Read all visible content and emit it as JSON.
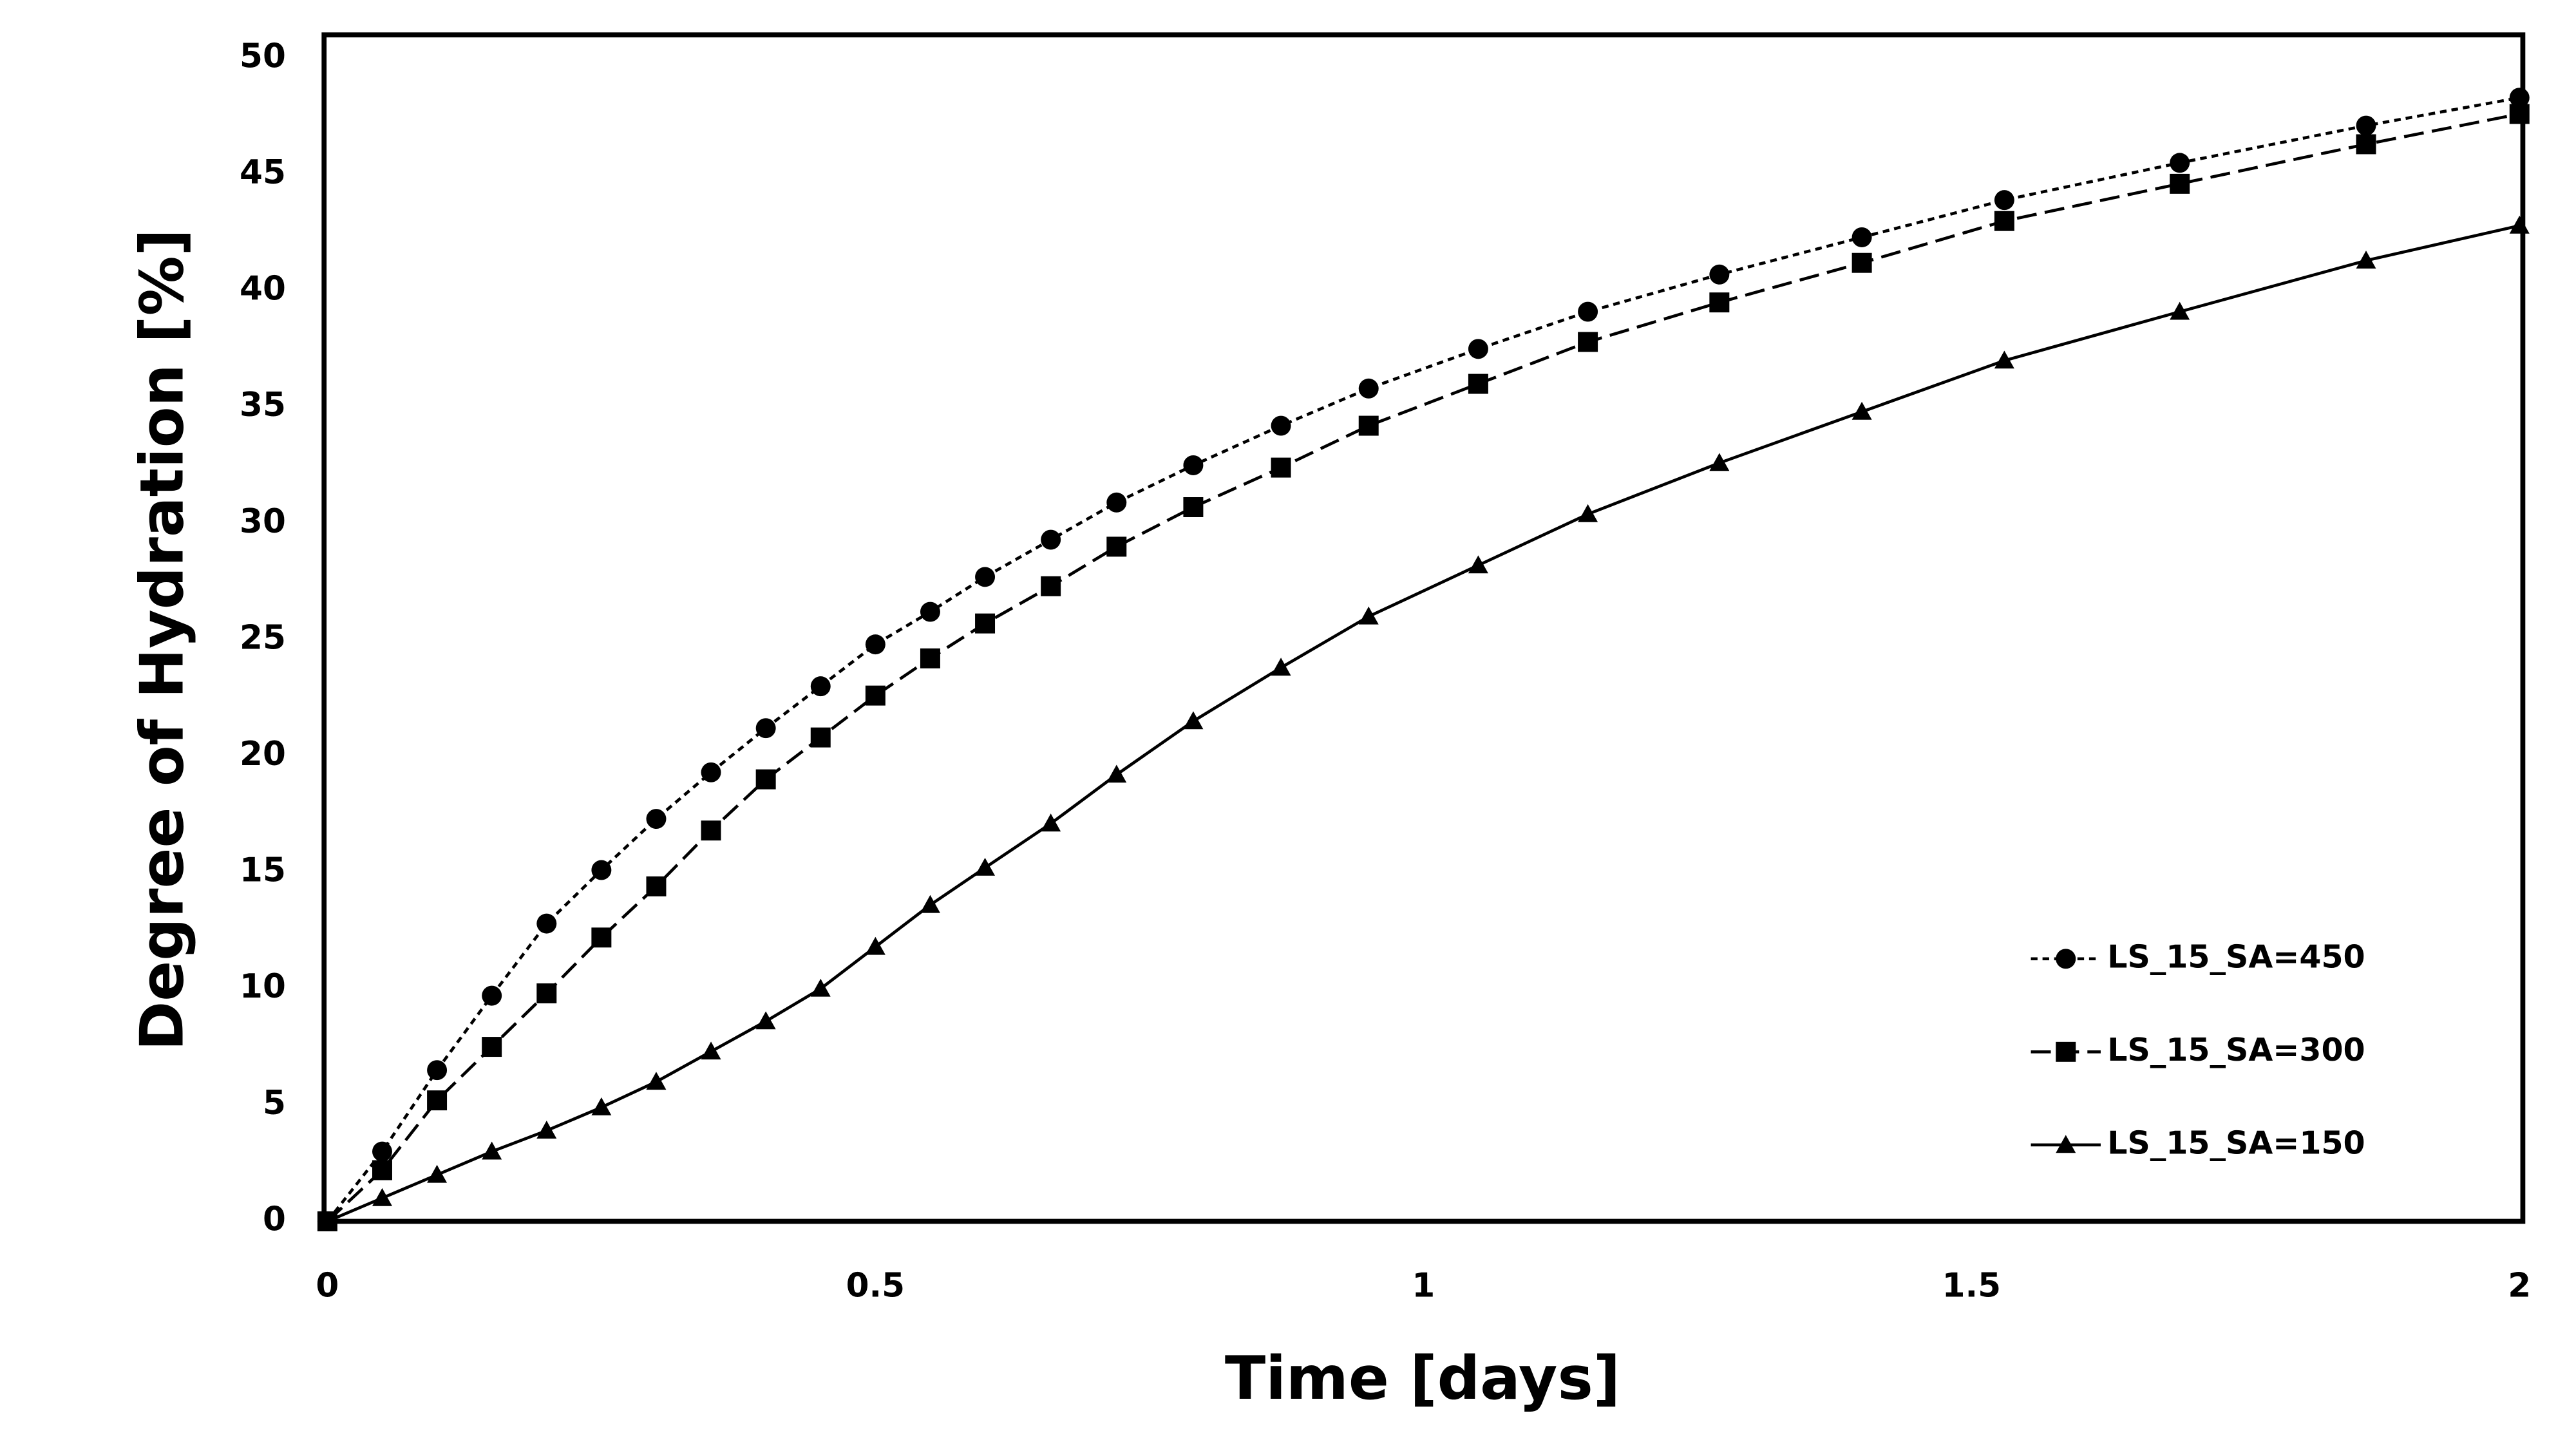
{
  "chart_data": {
    "type": "line",
    "x_label": "Time [days]",
    "y_label": "Degree of Hydration [%]",
    "xlim": [
      0,
      2
    ],
    "xticks": [
      0,
      0.5,
      1,
      1.5,
      2
    ],
    "ylim": [
      0,
      50
    ],
    "yticks": [
      0,
      5,
      10,
      15,
      20,
      25,
      30,
      35,
      40,
      45,
      50
    ],
    "grid": false,
    "legend": "lower right",
    "x": [
      0,
      0.05,
      0.1,
      0.15,
      0.2,
      0.25,
      0.3,
      0.35,
      0.4,
      0.45,
      0.5,
      0.55,
      0.6,
      0.66,
      0.72,
      0.79,
      0.87,
      0.95,
      1.05,
      1.15,
      1.27,
      1.4,
      1.53,
      1.69,
      1.86,
      2.0
    ],
    "series": [
      {
        "name": "LS_15_SA=450",
        "color": "#000000",
        "marker": "circle",
        "dash": "short",
        "values": [
          0,
          3.0,
          6.5,
          9.7,
          12.8,
          15.1,
          17.3,
          19.3,
          21.2,
          23.0,
          24.8,
          26.2,
          27.7,
          29.3,
          30.9,
          32.5,
          34.2,
          35.8,
          37.5,
          39.1,
          40.7,
          42.3,
          43.9,
          45.5,
          47.1,
          48.3
        ]
      },
      {
        "name": "LS_15_SA=300",
        "color": "#000000",
        "marker": "square",
        "dash": "long",
        "values": [
          0,
          2.2,
          5.2,
          7.5,
          9.8,
          12.2,
          14.4,
          16.8,
          19.0,
          20.8,
          22.6,
          24.2,
          25.7,
          27.3,
          29.0,
          30.7,
          32.4,
          34.2,
          36.0,
          37.8,
          39.5,
          41.2,
          43.0,
          44.6,
          46.3,
          47.6
        ]
      },
      {
        "name": "LS_15_SA=150",
        "color": "#000000",
        "marker": "triangle",
        "dash": "solid",
        "values": [
          0,
          1.0,
          2.0,
          3.0,
          3.9,
          4.9,
          6.0,
          7.3,
          8.6,
          10.0,
          11.8,
          13.6,
          15.2,
          17.1,
          19.2,
          21.5,
          23.8,
          26.0,
          28.2,
          30.4,
          32.6,
          34.8,
          37.0,
          39.1,
          41.3,
          42.8
        ]
      }
    ]
  }
}
